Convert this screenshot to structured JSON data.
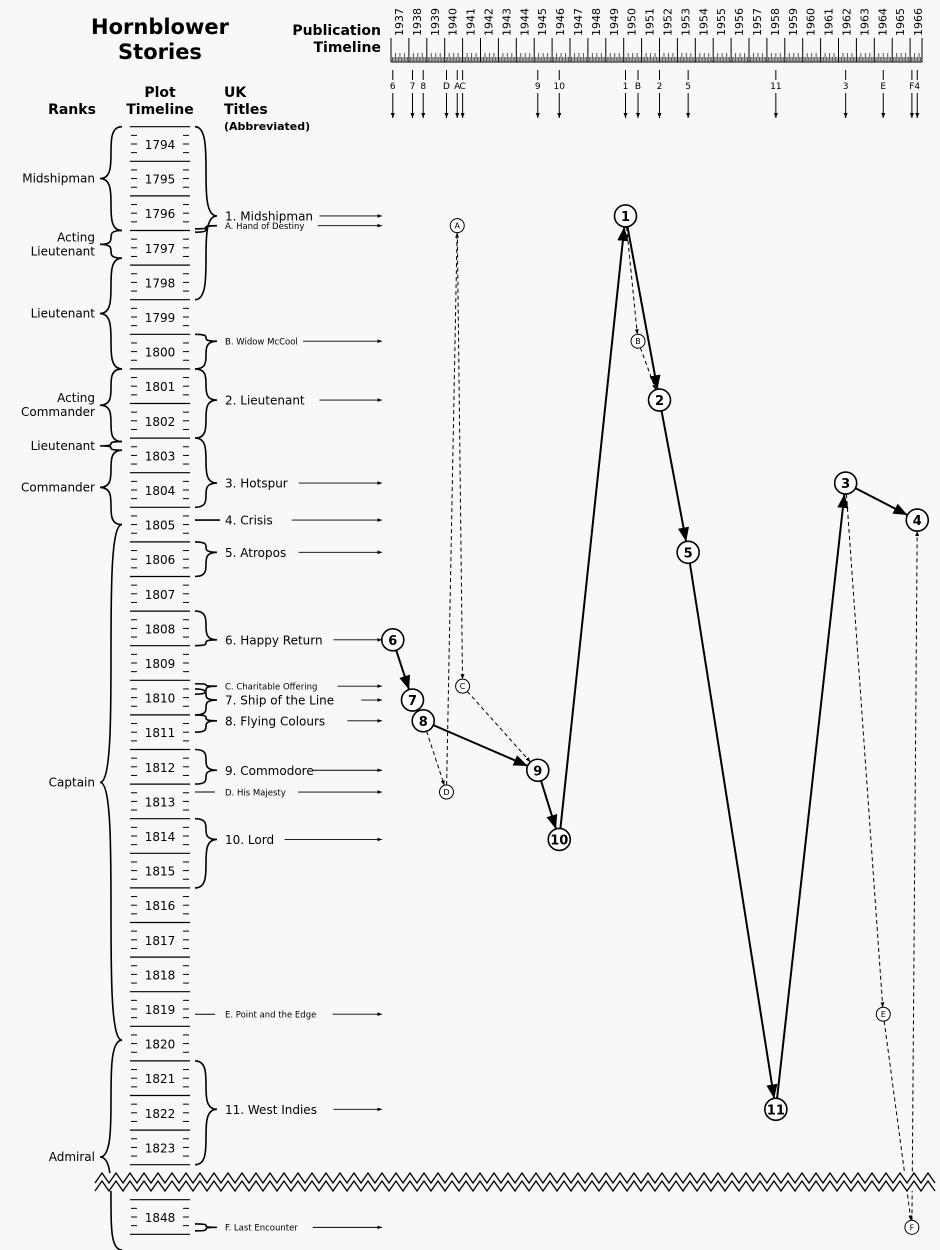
{
  "title": [
    "Hornblower",
    "Stories"
  ],
  "headers": {
    "ranks": "Ranks",
    "plot_timeline": [
      "Plot",
      "Timeline"
    ],
    "uk_titles": [
      "UK",
      "Titles"
    ],
    "abbreviated": "(Abbreviated)",
    "publication_timeline": [
      "Publication",
      "Timeline"
    ]
  },
  "plot_years": [
    1794,
    1795,
    1796,
    1797,
    1798,
    1799,
    1800,
    1801,
    1802,
    1803,
    1804,
    1805,
    1806,
    1807,
    1808,
    1809,
    1810,
    1811,
    1812,
    1813,
    1814,
    1815,
    1816,
    1817,
    1818,
    1819,
    1820,
    1821,
    1822,
    1823
  ],
  "plot_years_after_break": [
    1848
  ],
  "publication_years": [
    1937,
    1938,
    1939,
    1940,
    1941,
    1942,
    1943,
    1944,
    1945,
    1946,
    1947,
    1948,
    1949,
    1950,
    1951,
    1952,
    1953,
    1954,
    1955,
    1956,
    1957,
    1958,
    1959,
    1960,
    1961,
    1962,
    1963,
    1964,
    1965,
    1966
  ],
  "ranks": [
    {
      "label": [
        "Midshipman"
      ],
      "from": 1793.5,
      "to": 1796.5
    },
    {
      "label": [
        "Acting",
        "Lieutenant"
      ],
      "from": 1796.5,
      "to": 1797.3
    },
    {
      "label": [
        "Lieutenant"
      ],
      "from": 1797.3,
      "to": 1800.5
    },
    {
      "label": [
        "Acting",
        "Commander"
      ],
      "from": 1800.5,
      "to": 1802.6
    },
    {
      "label": [
        "Lieutenant"
      ],
      "from": 1802.6,
      "to": 1802.85
    },
    {
      "label": [
        "Commander"
      ],
      "from": 1802.85,
      "to": 1805
    },
    {
      "label": [
        "Captain"
      ],
      "from": 1805,
      "to": 1819.9
    },
    {
      "label": [
        "Admiral"
      ],
      "from": 1819.9,
      "to": 1849
    }
  ],
  "stories": [
    {
      "id": "1",
      "title": "1. Midshipman",
      "major": true,
      "pub": 1950.1,
      "plot": 1796.08,
      "span": [
        1793.5,
        1798.5
      ]
    },
    {
      "id": "A",
      "title": "A. Hand of Destiny",
      "major": false,
      "pub": 1940.7,
      "plot": 1796.36,
      "span": [
        1796.45,
        1796.55
      ]
    },
    {
      "id": "B",
      "title": "B. Widow McCool",
      "major": false,
      "pub": 1950.8,
      "plot": 1799.7,
      "span": [
        1799.5,
        1800.5
      ]
    },
    {
      "id": "2",
      "title": "2. Lieutenant",
      "major": true,
      "pub": 1952.0,
      "plot": 1801.4,
      "span": [
        1800.5,
        1802.5
      ]
    },
    {
      "id": "3",
      "title": "3. Hotspur",
      "major": true,
      "pub": 1962.4,
      "plot": 1803.8,
      "span": [
        1802.5,
        1804.5
      ]
    },
    {
      "id": "4",
      "title": "4. Crisis",
      "major": true,
      "pub": 1966.4,
      "plot": 1804.87,
      "span": null
    },
    {
      "id": "5",
      "title": "5. Atropos",
      "major": true,
      "pub": 1953.6,
      "plot": 1805.8,
      "span": [
        1805.5,
        1806.5
      ]
    },
    {
      "id": "6",
      "title": "6. Happy Return",
      "major": true,
      "pub": 1937.1,
      "plot": 1808.33,
      "span": [
        1807.5,
        1808.5
      ]
    },
    {
      "id": "C",
      "title": "C. Charitable Offering",
      "major": false,
      "pub": 1941.0,
      "plot": 1809.67,
      "span": [
        1809.6,
        1809.9
      ]
    },
    {
      "id": "7",
      "title": "7. Ship of the Line",
      "major": true,
      "pub": 1938.2,
      "plot": 1810.07,
      "span": [
        1809.75,
        1810.5
      ]
    },
    {
      "id": "8",
      "title": "8. Flying Colours",
      "major": true,
      "pub": 1938.8,
      "plot": 1810.67,
      "span": [
        1810.5,
        1811.0
      ]
    },
    {
      "id": "9",
      "title": "9. Commodore",
      "major": true,
      "pub": 1945.2,
      "plot": 1812.1,
      "span": [
        1811.5,
        1812.5
      ]
    },
    {
      "id": "D",
      "title": "D. His Majesty",
      "major": false,
      "pub": 1940.1,
      "plot": 1812.73,
      "span": null
    },
    {
      "id": "10",
      "title": "10. Lord",
      "major": true,
      "pub": 1946.4,
      "plot": 1814.1,
      "span": [
        1813.5,
        1815.5
      ]
    },
    {
      "id": "E",
      "title": "E. Point and the Edge",
      "major": false,
      "pub": 1964.5,
      "plot": 1819.15,
      "span": null
    },
    {
      "id": "11",
      "title": "11. West Indies",
      "major": true,
      "pub": 1958.5,
      "plot": 1821.9,
      "span": [
        1820.5,
        1823.5
      ]
    },
    {
      "id": "F",
      "title": "F. Last Encounter",
      "major": false,
      "pub": 1966.1,
      "plot": 1848.3,
      "span": [
        1848.2,
        1848.4
      ]
    }
  ],
  "publication_order_main": [
    "6",
    "7",
    "8",
    "9",
    "10",
    "1",
    "2",
    "5",
    "11",
    "3",
    "4"
  ],
  "publication_order_dashed": [
    [
      "8",
      "D",
      "A",
      "C",
      "9"
    ],
    [
      "1",
      "B",
      "2"
    ],
    [
      "3",
      "E",
      "F",
      "4"
    ]
  ]
}
